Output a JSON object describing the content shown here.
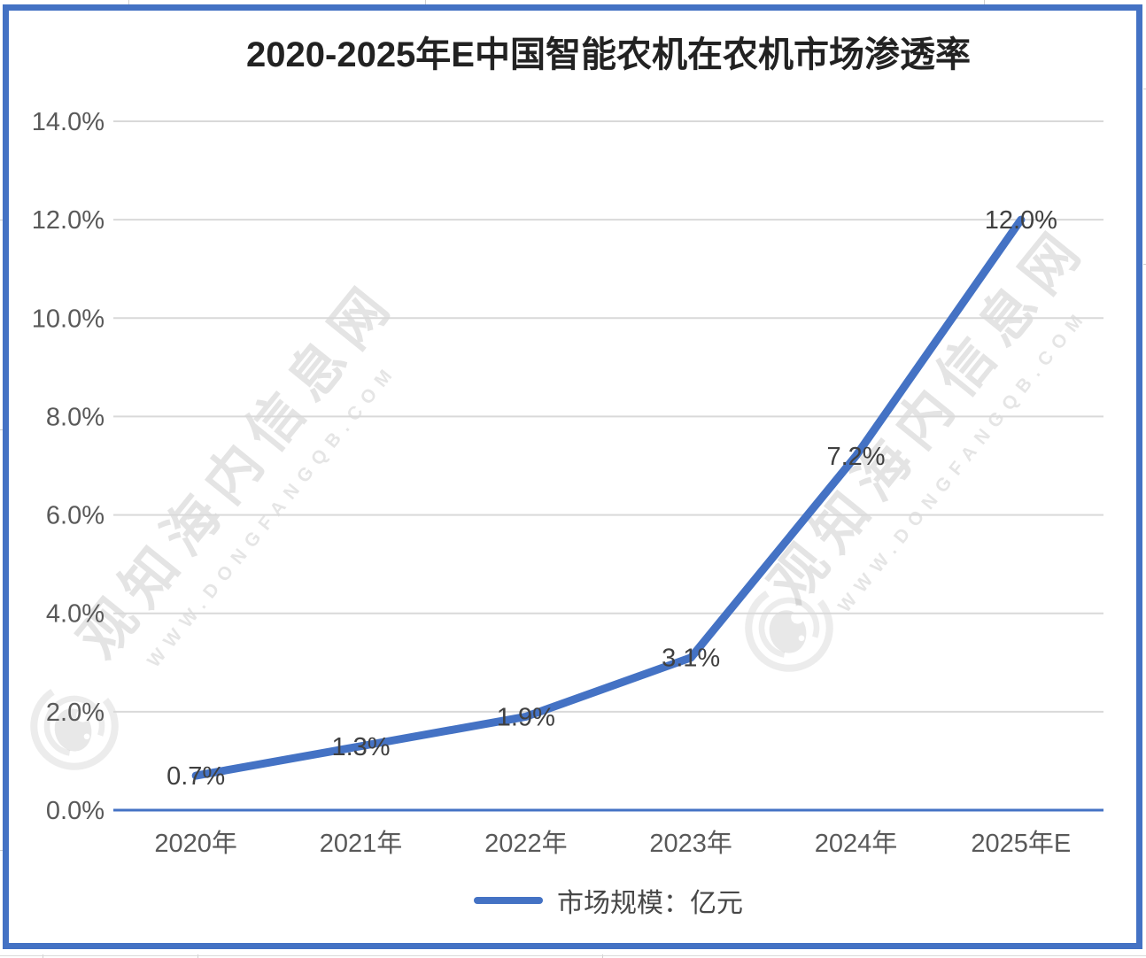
{
  "title": "2020-2025年E中国智能农机在农机市场渗透率",
  "chart_data": {
    "type": "line",
    "title": "2020-2025年E中国智能农机在农机市场渗透率",
    "categories": [
      "2020年",
      "2021年",
      "2022年",
      "2023年",
      "2024年",
      "2025年E"
    ],
    "series": [
      {
        "name": "市场规模：亿元",
        "color": "#4472C4",
        "values": [
          0.7,
          1.3,
          1.9,
          3.1,
          7.2,
          12.0
        ]
      }
    ],
    "data_labels": [
      "0.7%",
      "1.3%",
      "1.9%",
      "3.1%",
      "7.2%",
      "12.0%"
    ],
    "xlabel": "",
    "ylabel": "",
    "ylim": [
      0,
      14
    ],
    "ytick_step": 2,
    "ytick_labels": [
      "0.0%",
      "2.0%",
      "4.0%",
      "6.0%",
      "8.0%",
      "10.0%",
      "12.0%",
      "14.0%"
    ],
    "grid": true,
    "gridline_color": "#D9D9D9",
    "axis_color": "#4472C4",
    "tick_label_color": "#595959",
    "data_label_color": "#404040",
    "legend_position": "bottom"
  },
  "legend": {
    "label": "市场规模：亿元",
    "swatch_color": "#4472C4"
  },
  "watermark": {
    "cn": "观知海内信息网",
    "url": "WWW.DONGFANGQB.COM"
  },
  "frame": {
    "color": "#4472C4"
  }
}
